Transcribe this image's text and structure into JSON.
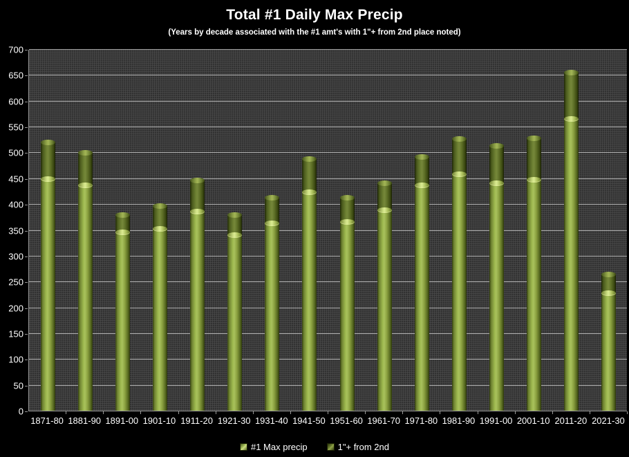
{
  "title": "Total #1 Daily Max Precip",
  "subtitle": "(Years by decade associated with the #1 amt's with 1\"+ from 2nd place noted)",
  "colors": {
    "background": "#000000",
    "plot_background": "#3b3b3b",
    "gridline": "#cdcdcd",
    "text": "#ffffff",
    "bar_light_center": "#a9c25c",
    "bar_light_edge": "#333f0e",
    "bar_dark_center": "#75873a",
    "bar_dark_edge": "#1f2706",
    "cap_highlight": "#dbeb92"
  },
  "chart_data": {
    "type": "bar",
    "stacked": true,
    "grid": true,
    "legend_position": "bottom",
    "xlabel": "",
    "ylabel": "",
    "ylim": [
      0,
      700
    ],
    "ytick_step": 50,
    "categories": [
      "1871-80",
      "1881-90",
      "1891-00",
      "1901-10",
      "1911-20",
      "1921-30",
      "1931-40",
      "1941-50",
      "1951-60",
      "1961-70",
      "1971-80",
      "1981-90",
      "1991-00",
      "2001-10",
      "2011-20",
      "2021-30"
    ],
    "series": [
      {
        "name": "#1 Max precip",
        "color_key": "light",
        "values": [
          448,
          437,
          345,
          352,
          385,
          340,
          363,
          423,
          365,
          388,
          436,
          458,
          441,
          447,
          565,
          228
        ]
      },
      {
        "name": "1\"+ from 2nd",
        "color_key": "dark",
        "values": [
          72,
          62,
          34,
          44,
          61,
          39,
          49,
          64,
          47,
          52,
          55,
          68,
          71,
          80,
          90,
          36
        ]
      }
    ],
    "stack_totals": [
      520,
      499,
      379,
      396,
      446,
      379,
      412,
      487,
      412,
      440,
      491,
      526,
      512,
      527,
      655,
      264
    ]
  },
  "legend": {
    "items": [
      {
        "label": "#1 Max precip",
        "swatch": "light"
      },
      {
        "label": "1\"+ from 2nd",
        "swatch": "dark"
      }
    ]
  }
}
